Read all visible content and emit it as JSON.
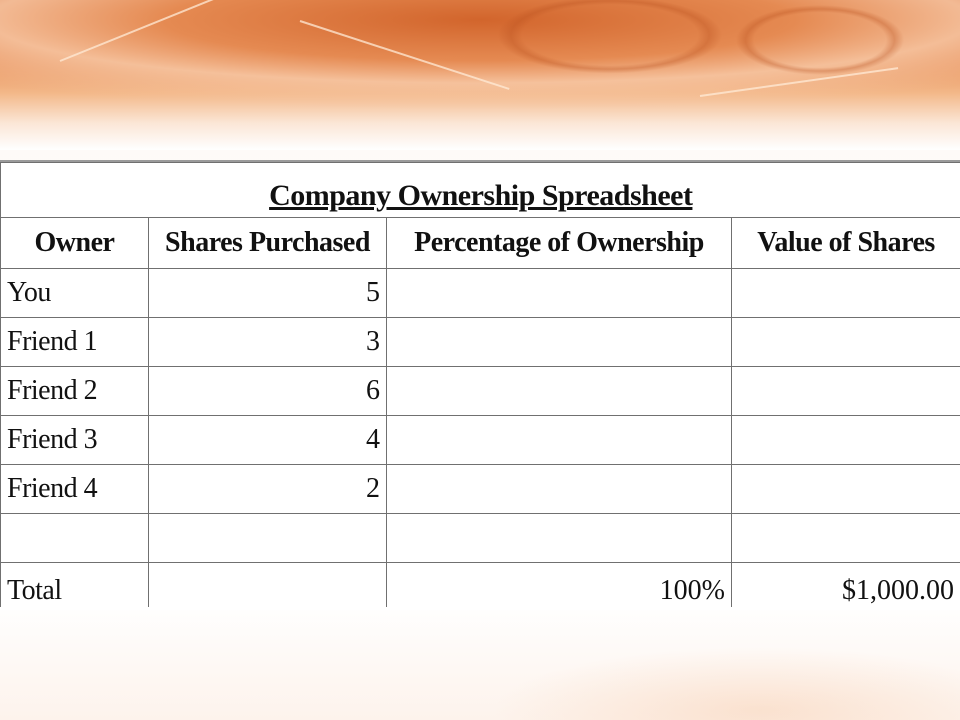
{
  "spreadsheet": {
    "title": "Company Ownership Spreadsheet",
    "columns": [
      "Owner",
      "Shares Purchased",
      "Percentage of Ownership",
      "Value of Shares"
    ],
    "rows": [
      {
        "owner": "You",
        "shares": "5",
        "percentage": "",
        "value": ""
      },
      {
        "owner": "Friend 1",
        "shares": "3",
        "percentage": "",
        "value": ""
      },
      {
        "owner": "Friend 2",
        "shares": "6",
        "percentage": "",
        "value": ""
      },
      {
        "owner": "Friend 3",
        "shares": "4",
        "percentage": "",
        "value": ""
      },
      {
        "owner": "Friend 4",
        "shares": "2",
        "percentage": "",
        "value": ""
      },
      {
        "owner": "",
        "shares": "",
        "percentage": "",
        "value": ""
      }
    ],
    "total": {
      "owner": "Total",
      "shares": "",
      "percentage": "100%",
      "value": "$1,000.00"
    }
  },
  "theme": {
    "banner_color": "#d2652c",
    "grid_color": "#707070"
  }
}
